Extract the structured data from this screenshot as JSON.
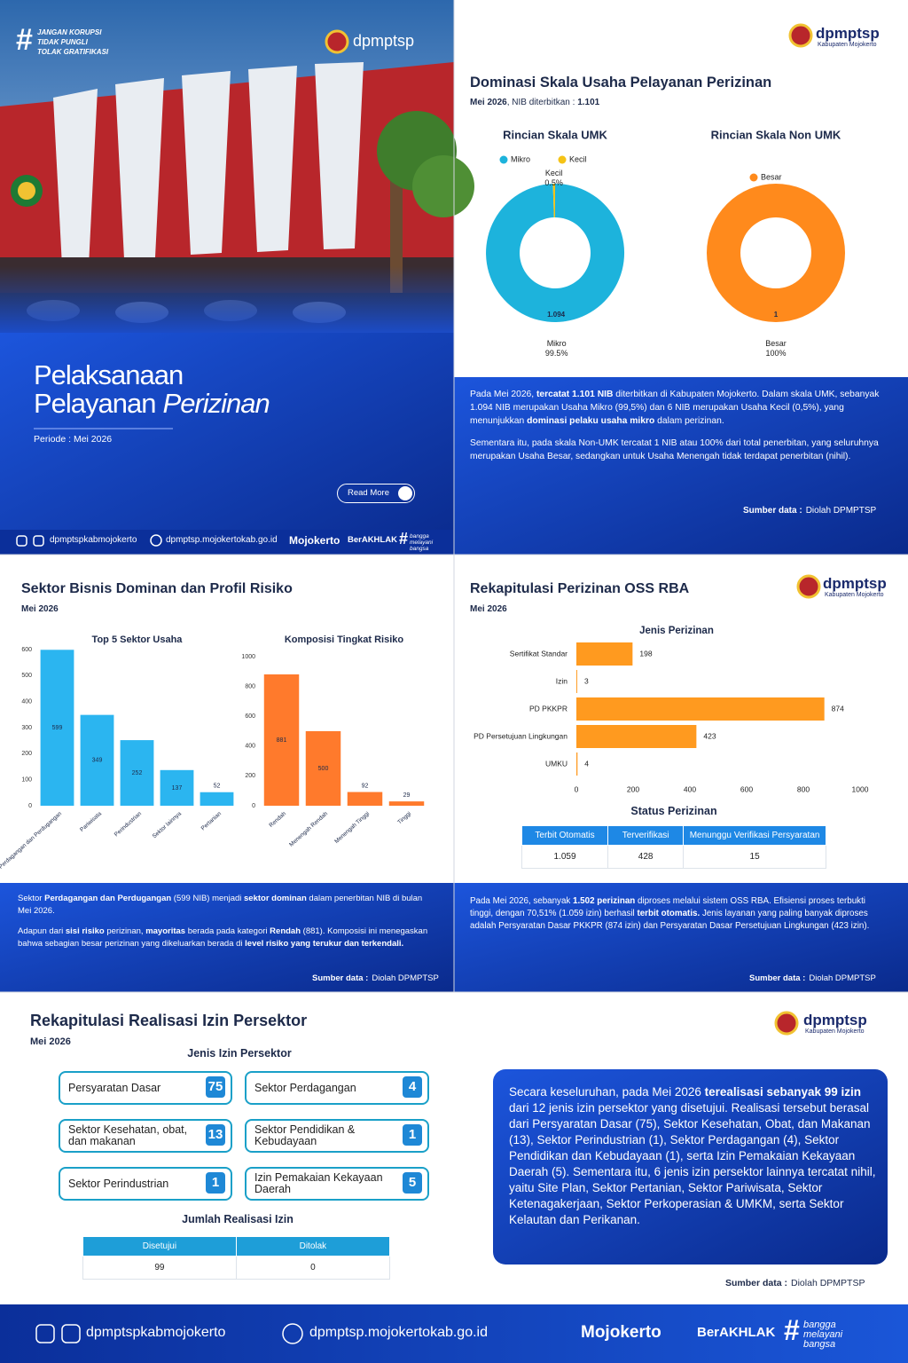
{
  "hash": "#",
  "cover": {
    "tags": [
      "JANGAN KORUPSI",
      "TIDAK PUNGLI",
      "TOLAK GRATIFIKASI"
    ],
    "brand": "dpmptsp",
    "title_line1": "Pelaksanaan",
    "title_line2": "Pelayanan",
    "title_italic": "Perizinan",
    "period": "Periode : Mei 2026",
    "button": "Read More"
  },
  "contacts": {
    "social": "dpmptspkabmojokerto",
    "web": "dpmptsp.mojokertokab.go.id",
    "mojokerto": "Mojokerto",
    "berakhlak": "BerAKHLAK",
    "tagline": [
      "bangga",
      "melayani",
      "bangsa"
    ]
  },
  "logo": {
    "name": "dpmptsp",
    "region": "Kabupaten Mojokerto"
  },
  "source": {
    "label": "Sumber data :",
    "text": "Diolah DPMPTSP"
  },
  "scale": {
    "title": "Dominasi Skala Usaha Pelayanan Perizinan",
    "period": "Mei 2026",
    "nib_label": ", NIB diterbitkan : ",
    "nib": "1.101",
    "paragraphs": [
      [
        {
          "t": "Pada Mei 2026, "
        },
        {
          "t": "tercatat 1.101 NIB",
          "b": true
        },
        {
          "t": " diterbitkan di Kabupaten Mojokerto. Dalam skala UMK, sebanyak 1.094 NIB merupakan Usaha Mikro (99,5%) dan 6 NIB merupakan Usaha Kecil (0,5%), yang menunjukkan "
        },
        {
          "t": "dominasi pelaku usaha mikro",
          "b": true
        },
        {
          "t": " dalam perizinan."
        }
      ],
      [
        {
          "t": "Sementara itu, pada skala Non-UMK tercatat 1 NIB atau 100% dari total penerbitan, yang seluruhnya merupakan Usaha Besar, sedangkan untuk Usaha Menengah tidak terdapat penerbitan (nihil)."
        }
      ]
    ]
  },
  "sector": {
    "title": "Sektor Bisnis Dominan dan Profil Risiko",
    "period": "Mei 2026",
    "paragraphs": [
      [
        {
          "t": "Sektor "
        },
        {
          "t": "Perdagangan dan Perdugangan",
          "b": true
        },
        {
          "t": " (599 NIB) menjadi "
        },
        {
          "t": "sektor dominan",
          "b": true
        },
        {
          "t": " dalam penerbitan NIB di bulan Mei 2026."
        }
      ],
      [
        {
          "t": "Adapun dari "
        },
        {
          "t": "sisi risiko",
          "b": true
        },
        {
          "t": " perizinan, "
        },
        {
          "t": "mayoritas",
          "b": true
        },
        {
          "t": " berada pada kategori "
        },
        {
          "t": "Rendah",
          "b": true
        },
        {
          "t": " (881). Komposisi ini menegaskan bahwa sebagian besar perizinan yang dikeluarkan berada di "
        },
        {
          "t": "level risiko yang terukur dan terkendali.",
          "b": true
        }
      ]
    ]
  },
  "oss": {
    "title": "Rekapitulasi Perizinan OSS RBA",
    "period": "Mei 2026",
    "status_title": "Status Perizinan",
    "status_table": {
      "headers": [
        "Terbit Otomatis",
        "Terverifikasi",
        "Menunggu Verifikasi Persyaratan"
      ],
      "rows": [
        [
          "1.059",
          "428",
          "15"
        ]
      ]
    },
    "paragraphs": [
      [
        {
          "t": "Pada Mei 2026, sebanyak "
        },
        {
          "t": "1.502 perizinan",
          "b": true
        },
        {
          "t": " diproses melalui sistem OSS RBA. Efisiensi proses terbukti tinggi, dengan 70,51% (1.059 izin) berhasil "
        },
        {
          "t": "terbit otomatis.",
          "b": true
        },
        {
          "t": " Jenis layanan yang paling banyak diproses adalah Persyaratan Dasar PKKPR (874 izin) dan Persyaratan Dasar Persetujuan Lingkungan (423 izin)."
        }
      ]
    ]
  },
  "realisasi": {
    "title": "Rekapitulasi Realisasi Izin Persektor",
    "period": "Mei 2026",
    "cards_title": "Jenis Izin Persektor",
    "cards": [
      {
        "label": "Persyaratan Dasar",
        "value": 75
      },
      {
        "label": "Sektor Perdagangan",
        "value": 4
      },
      {
        "label": "Sektor Kesehatan, obat, dan makanan",
        "value": 13
      },
      {
        "label": "Sektor Pendidikan & Kebudayaan",
        "value": 1
      },
      {
        "label": "Sektor Perindustrian",
        "value": 1
      },
      {
        "label": "Izin Pemakaian Kekayaan Daerah",
        "value": 5
      }
    ],
    "total_title": "Jumlah Realisasi Izin",
    "total_table": {
      "headers": [
        "Disetujui",
        "Ditolak"
      ],
      "rows": [
        [
          99,
          0
        ]
      ]
    },
    "paragraphs": [
      [
        {
          "t": "Secara keseluruhan, pada Mei 2026 "
        },
        {
          "t": "terealisasi sebanyak 99 izin",
          "b": true
        },
        {
          "t": " dari 12 jenis izin persektor yang disetujui. Realisasi tersebut berasal dari Persyaratan Dasar (75), Sektor Kesehatan, Obat, dan Makanan (13), Sektor Perindustrian (1), Sektor Perdagangan (4), Sektor Pendidikan dan Kebudayaan (1), serta Izin Pemakaian Kekayaan Daerah (5). Sementara itu, 6 jenis izin persektor lainnya tercatat nihil, yaitu Site Plan, Sektor Pertanian, Sektor Pariwisata, Sektor Ketenagakerjaan, Sektor Perkoperasian & UMKM, serta Sektor Kelautan dan Perikanan."
        }
      ]
    ]
  },
  "chart_data": [
    {
      "type": "pie",
      "donut": true,
      "title": "Rincian Skala UMK",
      "categories": [
        "Mikro",
        "Kecil"
      ],
      "values": [
        99.5,
        0.5
      ],
      "value_labels": [
        "99.5%",
        "0.5%"
      ],
      "inner_labels": [
        "1.094",
        null
      ],
      "colors": [
        "#1db3dc",
        "#f5c316"
      ]
    },
    {
      "type": "pie",
      "donut": true,
      "title": "Rincian Skala Non UMK",
      "categories": [
        "Besar"
      ],
      "values": [
        100
      ],
      "value_labels": [
        "100%"
      ],
      "inner_labels": [
        "1"
      ],
      "colors": [
        "#ff8a1c"
      ]
    },
    {
      "type": "bar",
      "title": "Top 5 Sektor Usaha",
      "categories": [
        "Perdagangan dan Perdugangan",
        "Pariwisata",
        "Perindustrian",
        "Sektor lainnya",
        "Pertanian"
      ],
      "values": [
        599,
        349,
        252,
        137,
        52
      ],
      "color": "#2bb5f0",
      "ylim": [
        0,
        600
      ],
      "yticks": [
        0,
        100,
        200,
        300,
        400,
        500,
        600
      ]
    },
    {
      "type": "bar",
      "title": "Komposisi Tingkat Risiko",
      "categories": [
        "Rendah",
        "Menengah Rendah",
        "Menengah Tinggi",
        "Tinggi"
      ],
      "values": [
        881,
        500,
        92,
        29
      ],
      "color": "#ff7a2c",
      "ylim": [
        0,
        1000
      ],
      "yticks": [
        0,
        200,
        400,
        600,
        800,
        1000
      ]
    },
    {
      "type": "hbar",
      "title": "Jenis Perizinan",
      "categories": [
        "Sertifikat Standar",
        "Izin",
        "PD PKKPR",
        "PD Persetujuan Lingkungan",
        "UMKU"
      ],
      "values": [
        198,
        3,
        874,
        423,
        4
      ],
      "color": "#ff9a1f",
      "xlim": [
        0,
        1000
      ],
      "xticks": [
        0,
        200,
        400,
        600,
        800,
        1000
      ]
    }
  ]
}
